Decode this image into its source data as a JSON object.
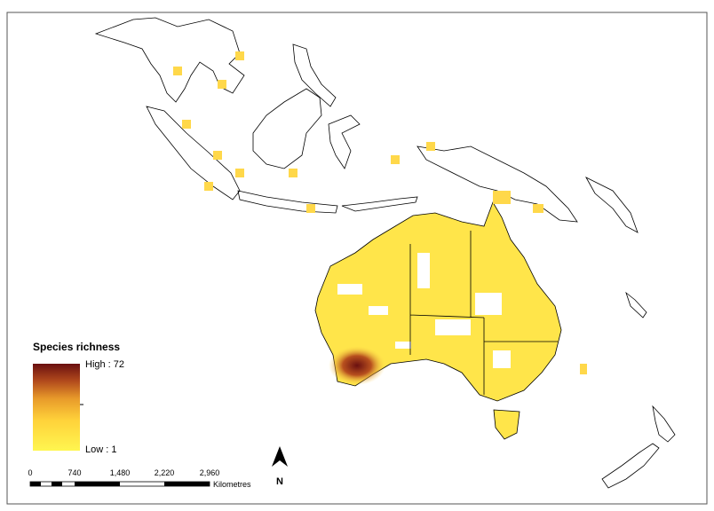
{
  "legend": {
    "title": "Species richness",
    "high_label": "High : 72",
    "low_label": "Low : 1"
  },
  "scale_bar": {
    "ticks": [
      "0",
      "740",
      "1,480",
      "2,220",
      "2,960"
    ],
    "unit": "Kilometres"
  },
  "north_arrow": {
    "label": "N"
  }
}
